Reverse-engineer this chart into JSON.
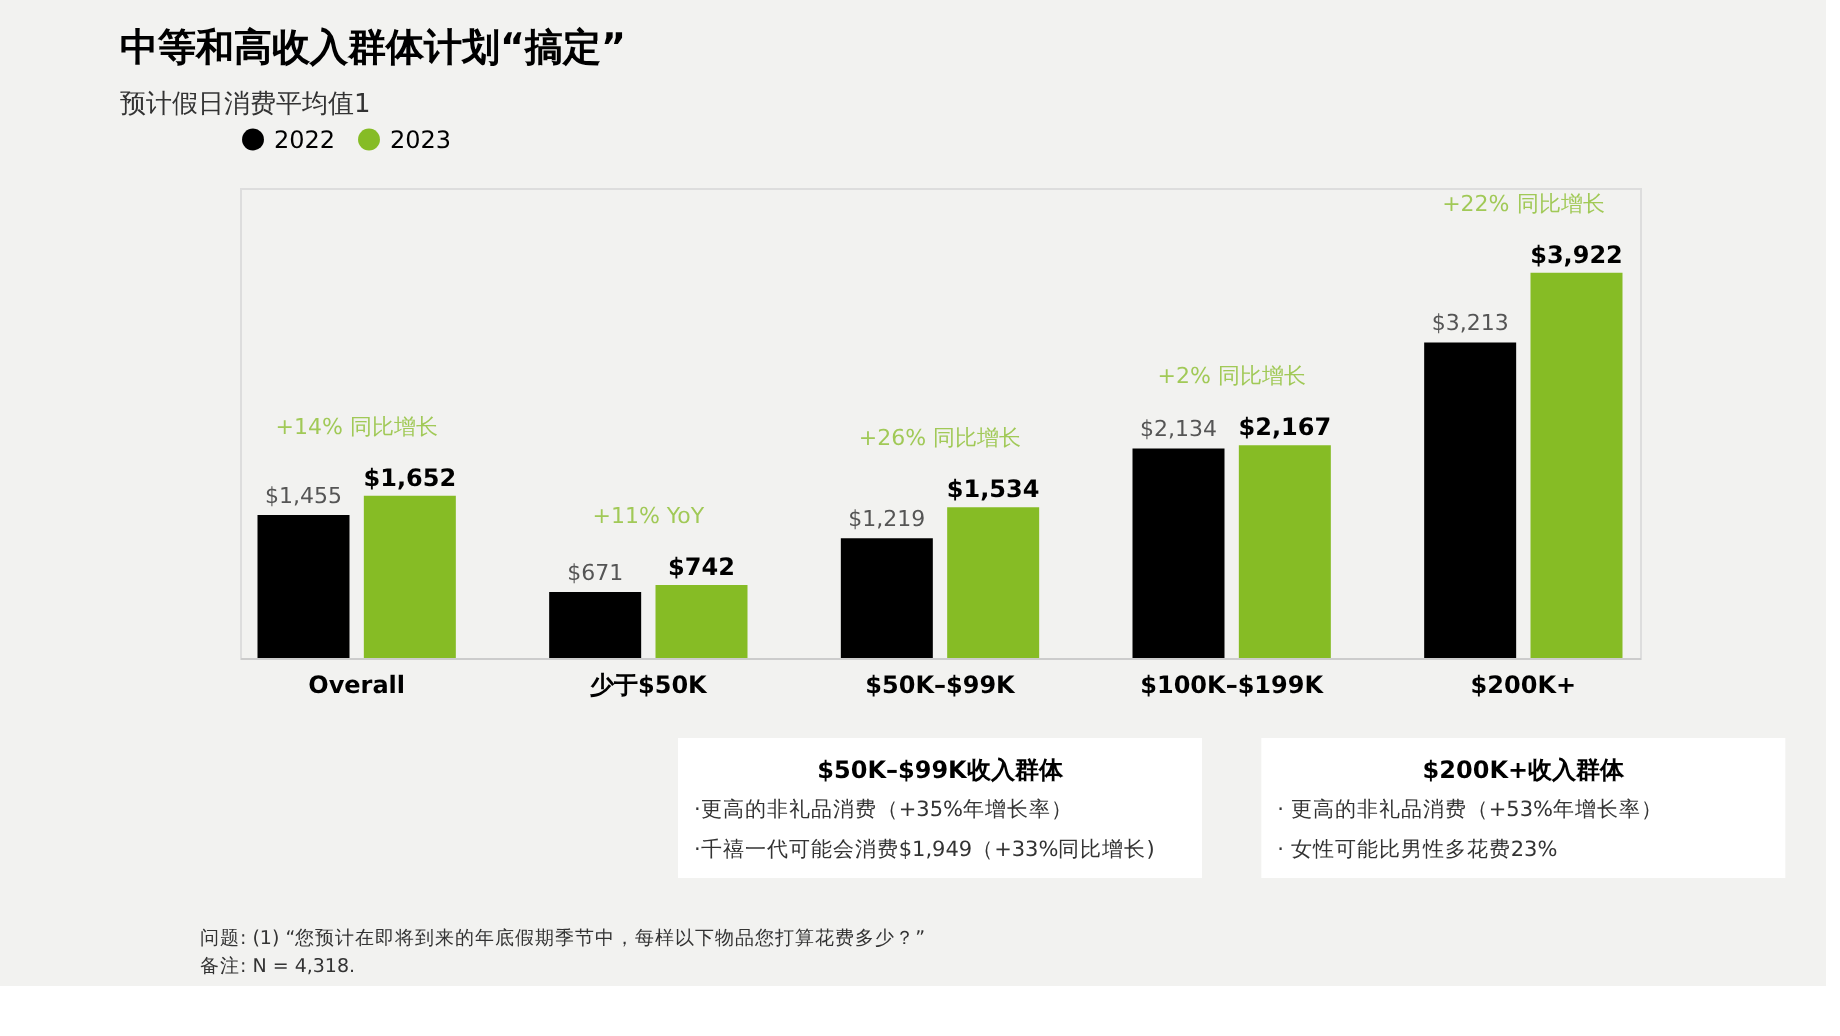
{
  "chart_data": {
    "type": "bar",
    "title": "中等和高收入群体计划“搞定”",
    "subtitle": "预计假日消费平均值1",
    "categories": [
      "Overall",
      "少于$50K",
      "$50K–$99K",
      "$100K–$199K",
      "$200K+"
    ],
    "series": [
      {
        "name": "2022",
        "color": "#000000",
        "values": [
          1455,
          671,
          1219,
          2134,
          3213
        ],
        "value_labels": [
          "$1,455",
          "$671",
          "$1,219",
          "$2,134",
          "$3,213"
        ]
      },
      {
        "name": "2023",
        "color": "#86bc25",
        "values": [
          1652,
          742,
          1534,
          2167,
          3922
        ],
        "value_labels": [
          "$1,652",
          "$742",
          "$1,534",
          "$2,167",
          "$3,922"
        ]
      }
    ],
    "legend": "top",
    "grid": false,
    "annotations": [
      "+14% 同比增长",
      "+11% YoY",
      "+26% 同比增长",
      "+2% 同比增长",
      "+22% 同比增长",
      "$50K–$99K收入群体",
      "·更高的非礼品消费（+35%年增长率）",
      "·千禧一代可能会消费$1,949（+33%同比增长)",
      "$200K+收入群体",
      "·  更高的非礼品消费（+53%年增长率）",
      "·  女性可能比男性多花费23%",
      "问题: (1) “您预计在即将到来的年底假期季节中，每样以下物品您打算花费多少？”",
      "备注: N = 4,318."
    ]
  }
}
